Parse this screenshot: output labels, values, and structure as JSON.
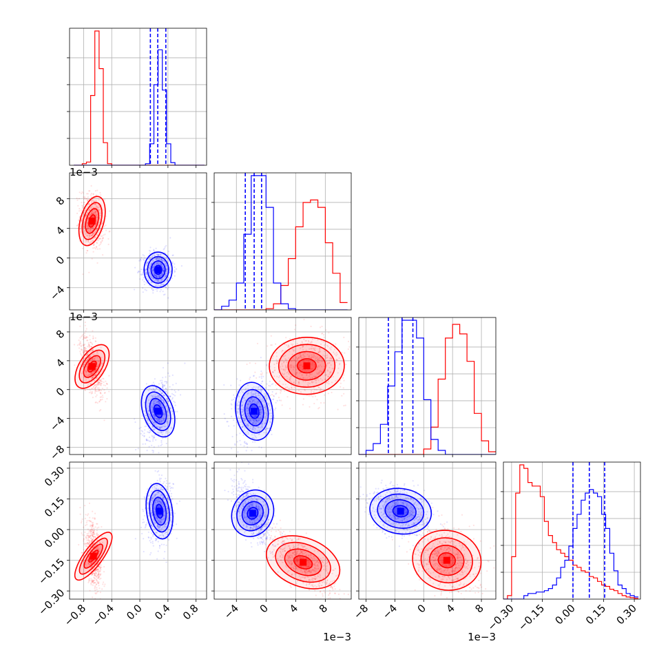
{
  "chart_data": {
    "type": "corner",
    "series": [
      {
        "color": "#ff0000"
      },
      {
        "color": "#0000ff"
      }
    ],
    "parameters": [
      {
        "index": 0,
        "range": [
          -1.0,
          0.95
        ],
        "ticks": [
          -0.8,
          -0.4,
          0.0,
          0.4,
          0.8
        ],
        "tick_labels": [
          "−0.8",
          "−0.4",
          "0.0",
          "0.4",
          "0.8"
        ],
        "offset_text": ""
      },
      {
        "index": 1,
        "range": [
          -7.0,
          11.5
        ],
        "ticks": [
          -4,
          0,
          4,
          8
        ],
        "tick_labels": [
          "−4",
          "0",
          "4",
          "8"
        ],
        "offset_text": "1e−3"
      },
      {
        "index": 2,
        "range": [
          -9.0,
          10.0
        ],
        "ticks": [
          -8,
          -4,
          0,
          4,
          8
        ],
        "tick_labels": [
          "−8",
          "−4",
          "0",
          "4",
          "8"
        ],
        "offset_text": "1e−3"
      },
      {
        "index": 3,
        "range": [
          -0.34,
          0.33
        ],
        "ticks": [
          -0.3,
          -0.15,
          0.0,
          0.15,
          0.3
        ],
        "tick_labels": [
          "−0.30",
          "−0.15",
          "0.00",
          "0.15",
          "0.30"
        ],
        "offset_text": ""
      }
    ],
    "histograms": [
      {
        "param": 0,
        "bins": [
          -0.94,
          -0.88,
          -0.82,
          -0.76,
          -0.7,
          -0.64,
          -0.58,
          -0.52,
          -0.46,
          -0.4,
          -0.34,
          -0.28,
          -0.22,
          -0.16,
          -0.1,
          -0.04,
          0.02,
          0.08,
          0.14,
          0.2,
          0.26,
          0.32,
          0.38,
          0.44,
          0.5,
          0.56,
          0.62,
          0.68,
          0.74,
          0.8,
          0.86,
          0.92
        ],
        "series": [
          {
            "color": "#ff0000",
            "counts": [
              0,
              0,
              3,
              6,
              130,
              250,
              180,
              42,
              3,
              0,
              0,
              0,
              0,
              0,
              0,
              0,
              0,
              0,
              0,
              0,
              0,
              0,
              0,
              0,
              0,
              0,
              0,
              0,
              0,
              0,
              0
            ]
          },
          {
            "color": "#0000ff",
            "counts": [
              0,
              0,
              0,
              0,
              0,
              0,
              0,
              0,
              0,
              0,
              0,
              0,
              0,
              0,
              0,
              0,
              0,
              3,
              40,
              150,
              215,
              140,
              40,
              5,
              0,
              0,
              0,
              0,
              0,
              0,
              0
            ]
          }
        ],
        "quantiles": [
          0.15,
          0.255,
          0.37
        ]
      },
      {
        "param": 1,
        "bins": [
          -7,
          -6,
          -5,
          -4,
          -3,
          -2,
          -1,
          0,
          1,
          2,
          3,
          4,
          5,
          6,
          7,
          8,
          9,
          10,
          11
        ],
        "series": [
          {
            "color": "#ff0000",
            "counts": [
              0,
              0,
              0,
              0,
              0,
              0,
              0,
              1,
              5,
              20,
              42,
              68,
              88,
              90,
              84,
              55,
              30,
              6
            ]
          },
          {
            "color": "#0000ff",
            "counts": [
              0,
              3,
              8,
              22,
              62,
              110,
              110,
              84,
              22,
              5,
              1,
              0,
              0,
              0,
              0,
              0,
              0,
              0
            ]
          }
        ],
        "quantiles": [
          -2.8,
          -1.6,
          -0.6
        ]
      },
      {
        "param": 2,
        "bins": [
          -9,
          -8,
          -7,
          -6,
          -5,
          -4,
          -3,
          -2,
          -1,
          0,
          1,
          2,
          3,
          4,
          5,
          6,
          7,
          8,
          9,
          10
        ],
        "series": [
          {
            "color": "#ff0000",
            "counts": [
              0,
              0,
              0,
              0,
              0,
              0,
              0,
              0,
              0,
              4,
              20,
              55,
              85,
              95,
              88,
              68,
              30,
              10,
              2
            ]
          },
          {
            "color": "#0000ff",
            "counts": [
              0,
              3,
              8,
              22,
              50,
              75,
              98,
              98,
              85,
              40,
              11,
              3,
              0,
              0,
              0,
              0,
              0,
              0,
              0
            ]
          }
        ],
        "quantiles": [
          -4.9,
          -3.0,
          -1.5
        ]
      },
      {
        "param": 3,
        "bins": [
          -0.34,
          -0.32,
          -0.3,
          -0.28,
          -0.26,
          -0.24,
          -0.22,
          -0.2,
          -0.18,
          -0.16,
          -0.14,
          -0.12,
          -0.1,
          -0.08,
          -0.06,
          -0.04,
          -0.02,
          0.0,
          0.02,
          0.04,
          0.06,
          0.08,
          0.1,
          0.12,
          0.14,
          0.16,
          0.18,
          0.2,
          0.22,
          0.24,
          0.26,
          0.28,
          0.3,
          0.32
        ],
        "series": [
          {
            "color": "#ff0000",
            "counts": [
              0,
              5,
              60,
              150,
              190,
              185,
              165,
              160,
              160,
              145,
              110,
              90,
              80,
              70,
              65,
              60,
              55,
              48,
              45,
              40,
              38,
              32,
              30,
              25,
              20,
              18,
              14,
              12,
              8,
              5,
              3,
              2,
              1
            ]
          },
          {
            "color": "#0000ff",
            "counts": [
              0,
              0,
              0,
              0,
              0,
              5,
              8,
              8,
              10,
              10,
              12,
              15,
              20,
              30,
              45,
              55,
              75,
              100,
              120,
              140,
              150,
              155,
              150,
              145,
              120,
              100,
              65,
              40,
              20,
              15,
              8,
              5,
              3
            ]
          }
        ],
        "quantiles": [
          0.0,
          0.08,
          0.155
        ]
      }
    ],
    "pairs": [
      {
        "x": 0,
        "y": 1,
        "series": [
          {
            "color": "#ff0000",
            "center": [
              -0.68,
              5.0
            ],
            "sigma": [
              0.08,
              1.8
            ],
            "rho": -0.2
          },
          {
            "color": "#0000ff",
            "center": [
              0.26,
              -1.6
            ],
            "sigma": [
              0.1,
              1.2
            ],
            "rho": 0.0
          }
        ]
      },
      {
        "x": 0,
        "y": 2,
        "series": [
          {
            "color": "#ff0000",
            "center": [
              -0.68,
              3.2
            ],
            "sigma": [
              0.08,
              2.0
            ],
            "rho": -0.55
          },
          {
            "color": "#0000ff",
            "center": [
              0.26,
              -3.0
            ],
            "sigma": [
              0.1,
              2.0
            ],
            "rho": 0.3
          }
        ]
      },
      {
        "x": 0,
        "y": 3,
        "series": [
          {
            "color": "#ff0000",
            "center": [
              -0.66,
              -0.13
            ],
            "sigma": [
              0.06,
              0.08
            ],
            "rho": -0.45
          },
          {
            "color": "#0000ff",
            "center": [
              0.28,
              0.09
            ],
            "sigma": [
              0.09,
              0.07
            ],
            "rho": 0.1
          }
        ]
      },
      {
        "x": 1,
        "y": 2,
        "series": [
          {
            "color": "#ff0000",
            "center": [
              5.5,
              3.3
            ],
            "sigma": [
              2.5,
              2.0
            ],
            "rho": 0.05
          },
          {
            "color": "#0000ff",
            "center": [
              -1.6,
              -3.0
            ],
            "sigma": [
              1.2,
              2.1
            ],
            "rho": 0.15
          }
        ]
      },
      {
        "x": 1,
        "y": 3,
        "series": [
          {
            "color": "#ff0000",
            "center": [
              5.0,
              -0.16
            ],
            "sigma": [
              2.2,
              0.075
            ],
            "rho": -0.75
          },
          {
            "color": "#0000ff",
            "center": [
              -1.8,
              0.08
            ],
            "sigma": [
              1.2,
              0.07
            ],
            "rho": -0.6
          }
        ]
      },
      {
        "x": 2,
        "y": 3,
        "series": [
          {
            "color": "#ff0000",
            "center": [
              3.2,
              -0.15
            ],
            "sigma": [
              2.2,
              0.08
            ],
            "rho": -0.35
          },
          {
            "color": "#0000ff",
            "center": [
              -3.2,
              0.09
            ],
            "sigma": [
              2.0,
              0.06
            ],
            "rho": -0.3
          }
        ]
      }
    ],
    "grid": true
  }
}
